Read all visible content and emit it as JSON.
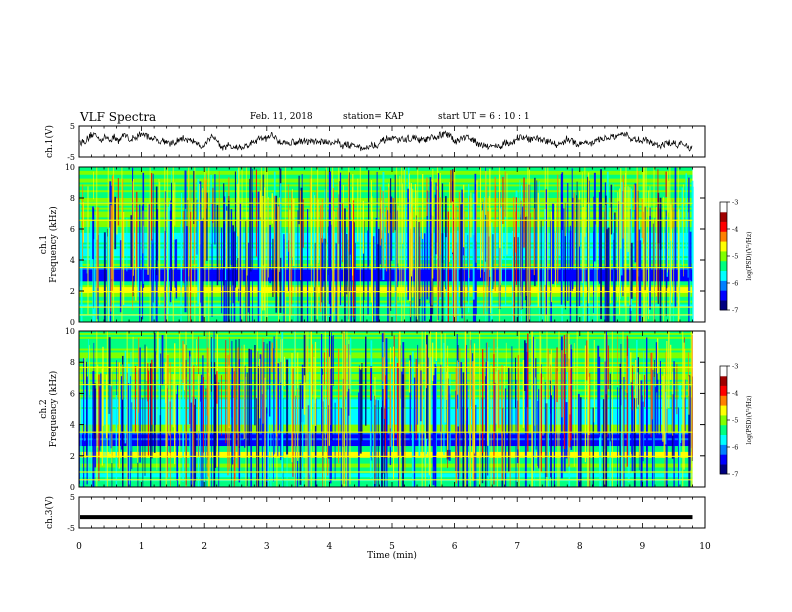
{
  "header": {
    "title": "VLF Spectra",
    "date": "Feb. 11, 2018",
    "station": "station= KAP",
    "start": "start  UT =   6  : 10 : 1"
  },
  "chart_data": [
    {
      "type": "line",
      "name": "ch1-waveform",
      "ylabel": "ch.1(V)",
      "ylim": [
        -5,
        5
      ],
      "yticks": [
        "5",
        "-5"
      ],
      "xlim": [
        0,
        10
      ]
    },
    {
      "type": "heatmap",
      "name": "ch1-spectrogram",
      "ylabel_line1": "ch.1",
      "ylabel_line2": "Frequency (kHz)",
      "xlim": [
        0,
        9.8
      ],
      "ylim": [
        0,
        10
      ],
      "yticks": [
        "0",
        "2",
        "4",
        "6",
        "8",
        "10"
      ],
      "colorbar": {
        "label": "log(PSD)(V²/Hz)",
        "range": [
          -7,
          -3
        ],
        "ticks": [
          "-3",
          "-4",
          "-5",
          "-6",
          "-7"
        ],
        "colors": [
          "#000080",
          "#0000ff",
          "#0080ff",
          "#00ffff",
          "#00ff80",
          "#80ff00",
          "#ffff00",
          "#ff8000",
          "#ff0000",
          "#a00000",
          "#ffffff"
        ]
      }
    },
    {
      "type": "heatmap",
      "name": "ch2-spectrogram",
      "ylabel_line1": "ch.2",
      "ylabel_line2": "Frequency (kHz)",
      "xlim": [
        0,
        9.8
      ],
      "ylim": [
        0,
        10
      ],
      "yticks": [
        "0",
        "2",
        "4",
        "6",
        "8",
        "10"
      ],
      "colorbar": {
        "label": "log(PSD)(V²/Hz)",
        "range": [
          -7,
          -3
        ],
        "ticks": [
          "-3",
          "-4",
          "-5",
          "-6",
          "-7"
        ]
      }
    },
    {
      "type": "line",
      "name": "ch3-waveform",
      "ylabel": "ch.3(V)",
      "ylim": [
        -5,
        5
      ],
      "yticks": [
        "5",
        "-5"
      ],
      "y_constant": -1.5,
      "xlim": [
        0,
        9.8
      ]
    }
  ],
  "xaxis": {
    "label": "Time (min)",
    "ticks": [
      "0",
      "1",
      "2",
      "3",
      "4",
      "5",
      "6",
      "7",
      "8",
      "9",
      "10"
    ],
    "range": [
      0,
      10
    ]
  }
}
